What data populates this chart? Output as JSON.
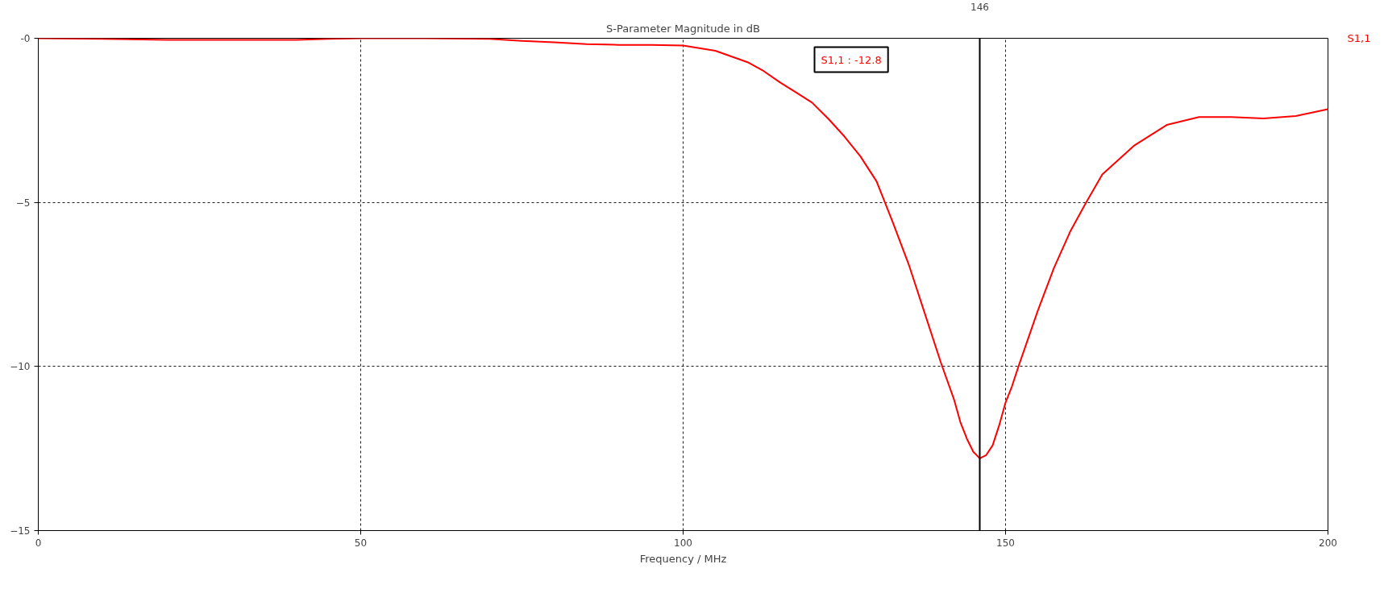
{
  "chart_data": {
    "type": "line",
    "title": "S-Parameter Magnitude in dB",
    "xlabel": "Frequency / MHz",
    "x": [
      0,
      10,
      20,
      30,
      40,
      45,
      50,
      60,
      70,
      75,
      80,
      85,
      90,
      95,
      100,
      105,
      110,
      112.5,
      115,
      117.5,
      120,
      122.5,
      125,
      127.5,
      130,
      132.5,
      135,
      137.5,
      140,
      142,
      143,
      144,
      145,
      146,
      147,
      148,
      149,
      150,
      151,
      152,
      155,
      157.5,
      160,
      162.5,
      165,
      170,
      175,
      180,
      185,
      190,
      195,
      200
    ],
    "series": [
      {
        "name": "S1,1",
        "color": "#ff0000",
        "values": [
          0,
          -0.02,
          -0.05,
          -0.05,
          -0.05,
          -0.02,
          0,
          0,
          -0.02,
          -0.08,
          -0.12,
          -0.18,
          -0.2,
          -0.2,
          -0.22,
          -0.38,
          -0.73,
          -1.0,
          -1.34,
          -1.65,
          -1.96,
          -2.45,
          -2.99,
          -3.6,
          -4.36,
          -5.6,
          -6.9,
          -8.4,
          -9.9,
          -11,
          -11.7,
          -12.2,
          -12.6,
          -12.8,
          -12.7,
          -12.4,
          -11.8,
          -11.1,
          -10.6,
          -10,
          -8.3,
          -7.0,
          -5.9,
          -5,
          -4.15,
          -3.26,
          -2.64,
          -2.4,
          -2.4,
          -2.44,
          -2.37,
          -2.16
        ]
      }
    ],
    "xlim": [
      0,
      200
    ],
    "xticks": [
      0,
      50,
      100,
      150,
      200
    ],
    "ylim": [
      -15,
      0
    ],
    "yticks": [
      {
        "value": 0,
        "label": "-0"
      },
      -5,
      -10,
      -15
    ],
    "grid": true,
    "line_style": "solid",
    "ref_lines": [
      {
        "axis": "x",
        "value": 146,
        "label": "146",
        "color": "#000000"
      }
    ],
    "annotations": [
      "S1,1 : -12.8"
    ]
  }
}
